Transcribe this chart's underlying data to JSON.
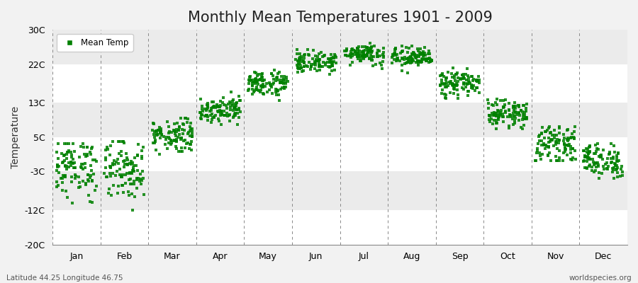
{
  "title": "Monthly Mean Temperatures 1901 - 2009",
  "ylabel": "Temperature",
  "subtitle_left": "Latitude 44.25 Longitude 46.75",
  "subtitle_right": "worldspecies.org",
  "yticks": [
    -20,
    -12,
    -3,
    5,
    13,
    22,
    30
  ],
  "ytick_labels": [
    "-20C",
    "-12C",
    "-3C",
    "5C",
    "13C",
    "22C",
    "30C"
  ],
  "ylim": [
    -20,
    30
  ],
  "months": [
    "Jan",
    "Feb",
    "Mar",
    "Apr",
    "May",
    "Jun",
    "Jul",
    "Aug",
    "Sep",
    "Oct",
    "Nov",
    "Dec"
  ],
  "dot_color": "#008000",
  "dot_size": 6,
  "background_color": "#F2F2F2",
  "band_colors": [
    "#FFFFFF",
    "#EBEBEB"
  ],
  "legend_label": "Mean Temp",
  "title_fontsize": 15,
  "axis_fontsize": 10,
  "tick_fontsize": 9,
  "monthly_means": [
    -2.0,
    -2.5,
    5.5,
    11.5,
    17.5,
    22.5,
    24.5,
    23.5,
    17.5,
    10.5,
    3.5,
    -0.5
  ],
  "monthly_stds": [
    3.5,
    3.5,
    2.0,
    1.5,
    1.5,
    1.2,
    1.2,
    1.2,
    1.5,
    1.5,
    2.0,
    2.0
  ],
  "monthly_min": [
    -13.0,
    -12.0,
    -1.5,
    8.0,
    13.5,
    19.0,
    21.0,
    20.0,
    14.0,
    7.0,
    -0.5,
    -4.5
  ],
  "monthly_max": [
    3.5,
    4.0,
    9.5,
    15.5,
    21.5,
    27.0,
    29.0,
    27.5,
    21.5,
    14.5,
    7.5,
    3.5
  ],
  "n_years": 109
}
